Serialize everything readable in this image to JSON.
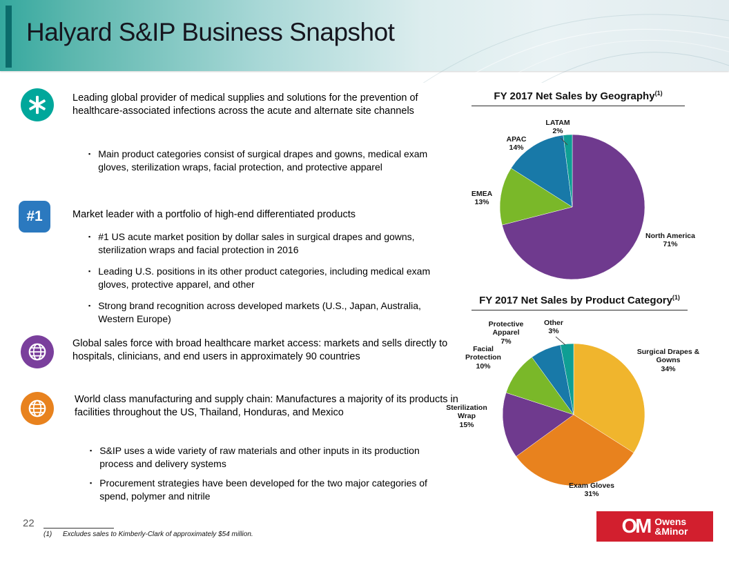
{
  "slide": {
    "title": "Halyard S&IP Business Snapshot",
    "page_number": "22",
    "bullet_marker": "▪",
    "footnote_marker": "(1)",
    "footnote_text": "Excludes sales to Kimberly-Clark of approximately $54 million."
  },
  "bullets": [
    {
      "icon": "medical-star-icon",
      "icon_color": "#00a79b",
      "text": "Leading global provider of medical supplies and solutions for the prevention of healthcare-associated infections across the acute and alternate site channels",
      "sub": [
        "Main product categories consist of surgical drapes and gowns, medical exam gloves, sterilization wraps, facial protection, and protective apparel"
      ]
    },
    {
      "icon": "number-one-badge",
      "icon_label": "#1",
      "icon_color": "#2b79bf",
      "text": "Market leader with a portfolio of high-end differentiated products",
      "sub": [
        "#1 US acute market position by dollar sales in surgical drapes and gowns, sterilization wraps and facial protection in 2016",
        "Leading U.S. positions in its other product categories, including medical exam gloves, protective apparel, and other",
        "Strong brand recognition across developed markets (U.S., Japan, Australia, Western Europe)"
      ]
    },
    {
      "icon": "globe-icon",
      "icon_color": "#7a3f9c",
      "text": "Global sales force with broad healthcare market access: markets and sells directly to hospitals, clinicians, and end users in approximately 90 countries",
      "sub": []
    },
    {
      "icon": "globe-icon",
      "icon_color": "#e8821e",
      "text": "World class manufacturing and supply chain: Manufactures a majority of its products in facilities throughout the US, Thailand, Honduras, and Mexico",
      "sub": [
        "S&IP uses a wide variety of raw materials and other inputs in its production process and delivery systems",
        "Procurement strategies have been developed for the two major categories of spend, polymer and nitrile"
      ]
    }
  ],
  "chart_data": [
    {
      "type": "pie",
      "title": "FY 2017 Net Sales by Geography",
      "title_superscript": "(1)",
      "start_angle_deg": 0,
      "direction": "clockwise",
      "slices": [
        {
          "label": "North America",
          "value": 71,
          "pct_label": "71%",
          "color": "#6f3a8e"
        },
        {
          "label": "EMEA",
          "value": 13,
          "pct_label": "13%",
          "color": "#7ab829"
        },
        {
          "label": "APAC",
          "value": 14,
          "pct_label": "14%",
          "color": "#1879a8"
        },
        {
          "label": "LATAM",
          "value": 2,
          "pct_label": "2%",
          "color": "#0f9e94"
        }
      ]
    },
    {
      "type": "pie",
      "title": "FY 2017 Net Sales by Product Category",
      "title_superscript": "(1)",
      "start_angle_deg": 0,
      "direction": "clockwise",
      "slices": [
        {
          "label": "Surgical Drapes & Gowns",
          "value": 34,
          "pct_label": "34%",
          "color": "#f0b52d"
        },
        {
          "label": "Exam Gloves",
          "value": 31,
          "pct_label": "31%",
          "color": "#e8821e"
        },
        {
          "label": "Sterilization Wrap",
          "value": 15,
          "pct_label": "15%",
          "color": "#6f3a8e"
        },
        {
          "label": "Facial Protection",
          "value": 10,
          "pct_label": "10%",
          "color": "#7ab829"
        },
        {
          "label": "Protective Apparel",
          "value": 7,
          "pct_label": "7%",
          "color": "#1879a8"
        },
        {
          "label": "Other",
          "value": 3,
          "pct_label": "3%",
          "color": "#0f9e94"
        }
      ]
    }
  ],
  "logo": {
    "monogram": "OM",
    "line1": "Owens",
    "line2": "&Minor",
    "color": "#d21f2e"
  }
}
